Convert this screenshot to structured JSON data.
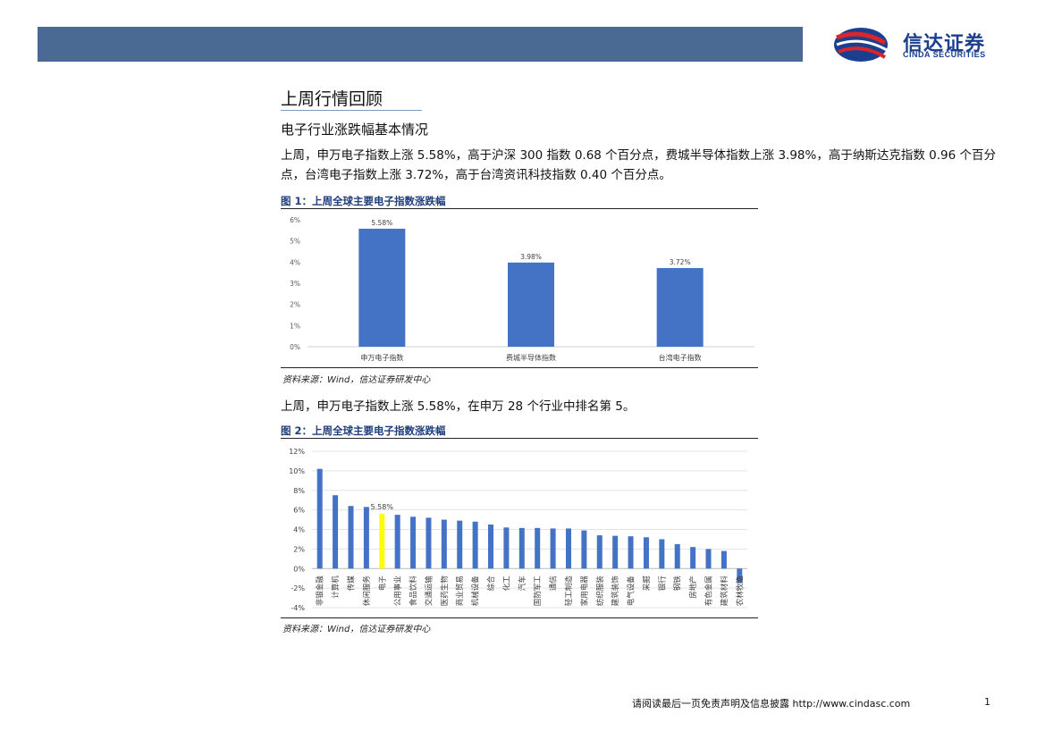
{
  "header": {
    "logo_cn": "信达证券",
    "logo_en": "CINDA SECURITIES"
  },
  "section_title": "上周行情回顾",
  "subsection_title": "电子行业涨跌幅基本情况",
  "paragraph1": "上周，申万电子指数上涨 5.58%，高于沪深 300 指数 0.68 个百分点，费城半导体指数上涨 3.98%，高于纳斯达克指数 0.96 个百分点，台湾电子指数上涨 3.72%，高于台湾资讯科技指数 0.40 个百分点。",
  "figure1": {
    "title": "图 1：上周全球主要电子指数涨跌幅",
    "source": "资料来源：Wind，信达证券研发中心"
  },
  "paragraph2": "上周，申万电子指数上涨 5.58%，在申万 28 个行业中排名第 5。",
  "figure2": {
    "title": "图 2：上周全球主要电子指数涨跌幅",
    "source": "资料来源：Wind，信达证券研发中心"
  },
  "footer": {
    "text": "请阅读最后一页免责声明及信息披露 http://www.cindasc.com",
    "page": "1"
  },
  "colors": {
    "bar": "#4472c4",
    "highlight": "#ffff00",
    "header_bar": "#4a6a93",
    "figure_title": "#1f3d7a"
  },
  "chart_data": [
    {
      "type": "bar",
      "categories": [
        "申万电子指数",
        "费城半导体指数",
        "台湾电子指数"
      ],
      "values": [
        5.58,
        3.98,
        3.72
      ],
      "data_labels": [
        "5.58%",
        "3.98%",
        "3.72%"
      ],
      "yticks": [
        "0%",
        "1%",
        "2%",
        "3%",
        "4%",
        "5%",
        "6%"
      ],
      "ylim": [
        0,
        6
      ],
      "grid": false,
      "legend": "none"
    },
    {
      "type": "bar",
      "categories": [
        "非银金融",
        "计算机",
        "传媒",
        "休闲服务",
        "电子",
        "公用事业",
        "食品饮料",
        "交通运输",
        "医药生物",
        "商业贸易",
        "机械设备",
        "综合",
        "化工",
        "汽车",
        "国防军工",
        "通信",
        "轻工制造",
        "家用电器",
        "纺织服装",
        "建筑装饰",
        "电气设备",
        "采掘",
        "银行",
        "钢铁",
        "房地产",
        "有色金属",
        "建筑材料",
        "农林牧渔"
      ],
      "values": [
        10.2,
        7.5,
        6.4,
        6.3,
        5.58,
        5.5,
        5.3,
        5.2,
        5.0,
        4.9,
        4.8,
        4.5,
        4.2,
        4.15,
        4.15,
        4.1,
        4.1,
        3.9,
        3.4,
        3.35,
        3.3,
        3.2,
        3.0,
        2.5,
        2.2,
        2.0,
        1.8,
        -1.5
      ],
      "highlight_index": 4,
      "data_labels": [
        "5.58%"
      ],
      "yticks": [
        "-4%",
        "-2%",
        "0%",
        "2%",
        "4%",
        "6%",
        "8%",
        "10%",
        "12%"
      ],
      "ylim": [
        -4,
        12
      ],
      "grid": true,
      "legend": "none"
    }
  ]
}
